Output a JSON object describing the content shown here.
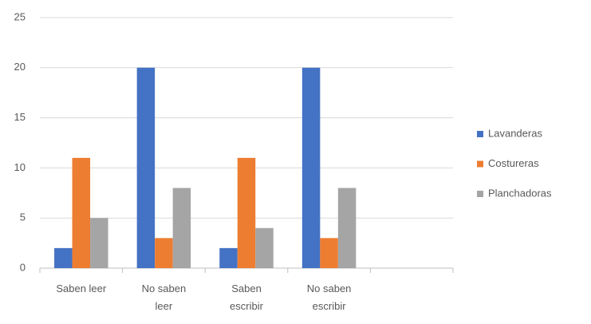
{
  "chart_data": {
    "type": "bar",
    "categories": [
      "Saben leer",
      "No saben leer",
      "Saben escribir",
      "No saben escribir",
      null
    ],
    "series": [
      {
        "name": "Lavanderas",
        "color": "#4472c4",
        "values": [
          2,
          20,
          2,
          20,
          null
        ]
      },
      {
        "name": "Costureras",
        "color": "#ed7d31",
        "values": [
          11,
          3,
          11,
          3,
          null
        ]
      },
      {
        "name": "Planchadoras",
        "color": "#a5a5a5",
        "values": [
          5,
          8,
          4,
          8,
          null
        ]
      }
    ],
    "ylim": [
      0,
      25
    ],
    "yticks": [
      0,
      5,
      10,
      15,
      20,
      25
    ],
    "grid": true,
    "legend": "right"
  }
}
